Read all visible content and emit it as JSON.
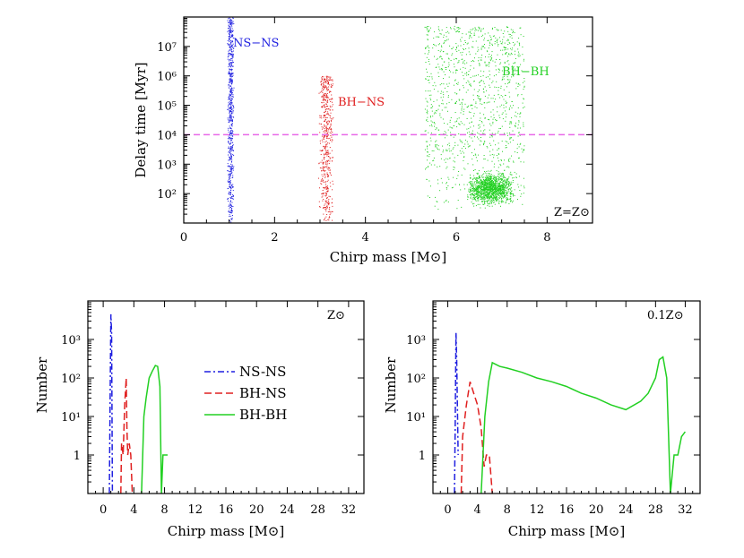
{
  "colors": {
    "ns_ns": "#1f1fe0",
    "bh_ns": "#e02020",
    "bh_bh": "#22d022",
    "threshold": "#e868e8",
    "axes": "#000000"
  },
  "chart_data": [
    {
      "type": "scatter",
      "id": "delay-time-scatter",
      "xlabel": "Chirp mass [M⊙]",
      "ylabel": "Delay time [Myr]",
      "xlim": [
        0,
        9
      ],
      "ylim": [
        10,
        100000000
      ],
      "yscale": "log",
      "xticks": [
        0,
        2,
        4,
        6,
        8
      ],
      "yticks": [
        100,
        1000,
        10000,
        100000,
        1000000,
        10000000
      ],
      "ytick_labels": [
        "10²",
        "10³",
        "10⁴",
        "10⁵",
        "10⁶",
        "10⁷"
      ],
      "annotation": "Z=Z⊙",
      "threshold_line": {
        "y": 10000,
        "style": "dashed"
      },
      "series": [
        {
          "name": "NS-NS",
          "x_range": [
            0.95,
            1.1
          ],
          "y_range": [
            11,
            100000000
          ],
          "n_points": 700
        },
        {
          "name": "BH-NS",
          "x_range": [
            2.95,
            3.3
          ],
          "y_range": [
            11,
            1000000
          ],
          "n_points": 550
        },
        {
          "name": "BH-BH",
          "x_range": [
            5.3,
            7.5
          ],
          "y_range": [
            30,
            50000000
          ],
          "n_points": 2500
        }
      ]
    },
    {
      "type": "line",
      "id": "number-hist-zsun",
      "xlabel": "Chirp mass [M⊙]",
      "ylabel": "Number",
      "annotation": "Z⊙",
      "xlim": [
        -2,
        34
      ],
      "xticks": [
        0,
        4,
        8,
        12,
        16,
        20,
        24,
        28,
        32
      ],
      "yscale": "log",
      "ylim": [
        0.1,
        10000
      ],
      "yticks": [
        1,
        10,
        100,
        1000
      ],
      "ytick_labels": [
        "1",
        "10¹",
        "10²",
        "10³"
      ],
      "legend_position": "center",
      "series": [
        {
          "name": "NS-NS",
          "style": "dash-dot",
          "x": [
            0.8,
            0.9,
            1.0,
            1.1,
            1.2
          ],
          "y": [
            0.1,
            20,
            4500,
            1500,
            0.1
          ]
        },
        {
          "name": "BH-NS",
          "style": "dashed",
          "x": [
            2.3,
            2.4,
            2.6,
            2.8,
            3.0,
            3.1,
            3.2,
            3.4,
            3.6,
            3.8
          ],
          "y": [
            0.1,
            2,
            1,
            20,
            100,
            5,
            1,
            2,
            1,
            0.1
          ]
        },
        {
          "name": "BH-BH",
          "style": "solid",
          "x": [
            5.0,
            5.3,
            5.6,
            6.0,
            6.4,
            6.8,
            7.1,
            7.4,
            7.6,
            7.8,
            8.0,
            8.2,
            8.4
          ],
          "y": [
            0.1,
            10,
            30,
            100,
            150,
            210,
            200,
            60,
            0.1,
            1,
            1,
            1,
            1
          ]
        }
      ]
    },
    {
      "type": "line",
      "id": "number-hist-01zsun",
      "xlabel": "Chirp mass [M⊙]",
      "ylabel": "Number",
      "annotation": "0.1Z⊙",
      "xlim": [
        -2,
        34
      ],
      "xticks": [
        0,
        4,
        8,
        12,
        16,
        20,
        24,
        28,
        32
      ],
      "yscale": "log",
      "ylim": [
        0.1,
        10000
      ],
      "yticks": [
        1,
        10,
        100,
        1000
      ],
      "ytick_labels": [
        "1",
        "10¹",
        "10²",
        "10³"
      ],
      "series": [
        {
          "name": "NS-NS",
          "style": "dash-dot",
          "x": [
            0.9,
            1.0,
            1.1,
            1.2,
            1.4
          ],
          "y": [
            0.1,
            5,
            1500,
            300,
            1
          ]
        },
        {
          "name": "BH-NS",
          "style": "dashed",
          "x": [
            1.8,
            2.0,
            2.5,
            3.0,
            3.5,
            4.0,
            4.5,
            4.9,
            5.2,
            5.6,
            6.0
          ],
          "y": [
            0.1,
            3,
            20,
            80,
            40,
            20,
            5,
            0.5,
            1,
            1,
            0.1
          ]
        },
        {
          "name": "BH-BH",
          "style": "solid",
          "x": [
            4.5,
            5.0,
            5.5,
            6.0,
            7.0,
            8.0,
            10,
            12,
            14,
            16,
            18,
            20,
            22,
            24,
            26,
            27,
            28,
            28.5,
            29,
            29.5,
            30.0,
            30.5,
            31.0,
            31.5,
            32.0
          ],
          "y": [
            0.1,
            10,
            80,
            250,
            200,
            180,
            140,
            100,
            80,
            60,
            40,
            30,
            20,
            15,
            25,
            40,
            100,
            300,
            350,
            100,
            0.1,
            1,
            1,
            3,
            4
          ]
        }
      ]
    }
  ]
}
